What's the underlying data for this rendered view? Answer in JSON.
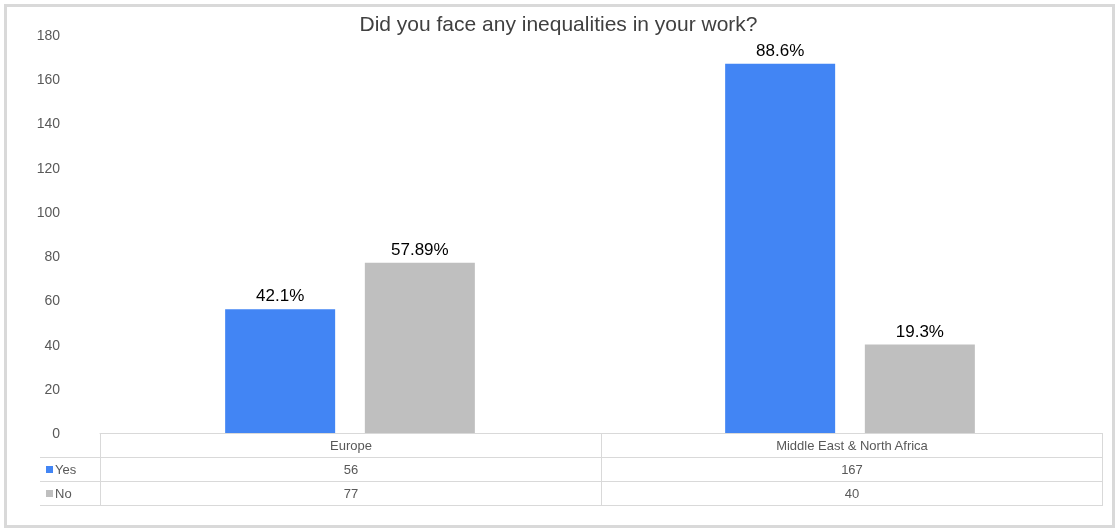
{
  "chart_data": {
    "type": "bar",
    "title": "Did you face any inequalities in your work?",
    "categories": [
      "Europe",
      "Middle East & North Africa"
    ],
    "series": [
      {
        "name": "Yes",
        "color": "#4285f4",
        "values": [
          56,
          167
        ]
      },
      {
        "name": "No",
        "color": "#bfbfbf",
        "values": [
          77,
          40
        ]
      }
    ],
    "annotations": [
      "42.1%",
      "57.89%",
      "88.6%",
      "19.3%"
    ],
    "ylim": [
      0,
      180
    ],
    "yticks": [
      0,
      20,
      40,
      60,
      80,
      100,
      120,
      140,
      160,
      180
    ],
    "grid": false,
    "legend": "bottom left",
    "data_labels": true
  }
}
